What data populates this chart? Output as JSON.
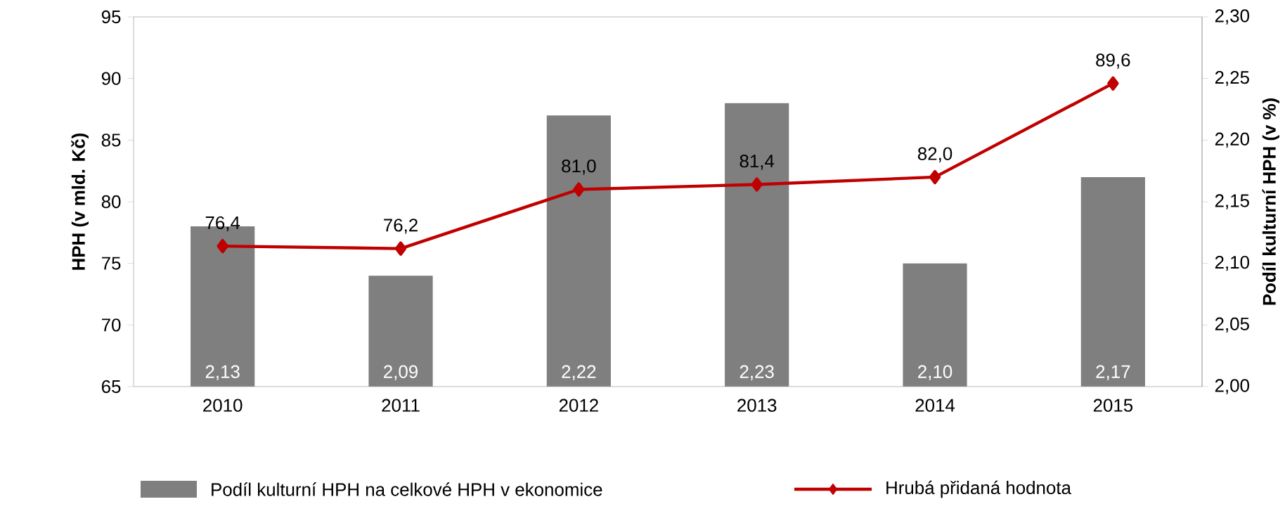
{
  "chart_data": {
    "type": "bar",
    "categories": [
      "2010",
      "2011",
      "2012",
      "2013",
      "2014",
      "2015"
    ],
    "ylabel": "HPH (v mld. Kč)",
    "y2label": "Podíl kulturní HPH (v %)",
    "ylim": [
      65,
      95
    ],
    "yticks": [
      65,
      70,
      75,
      80,
      85,
      90,
      95
    ],
    "y2lim": [
      2.0,
      2.3
    ],
    "y2ticks": [
      {
        "value": 2.0,
        "label": "2,00"
      },
      {
        "value": 2.05,
        "label": "2,05"
      },
      {
        "value": 2.1,
        "label": "2,10"
      },
      {
        "value": 2.15,
        "label": "2,15"
      },
      {
        "value": 2.2,
        "label": "2,20"
      },
      {
        "value": 2.25,
        "label": "2,25"
      },
      {
        "value": 2.3,
        "label": "2,30"
      }
    ],
    "series": [
      {
        "name": "Podíl kulturní HPH na celkové HPH v ekonomice",
        "axis": "y2",
        "color": "#7f7f7f",
        "values": [
          2.13,
          2.09,
          2.22,
          2.23,
          2.1,
          2.17
        ],
        "value_labels": [
          "2,13",
          "2,09",
          "2,22",
          "2,23",
          "2,10",
          "2,17"
        ]
      },
      {
        "name": "Hrubá přidaná hodnota",
        "type": "line",
        "axis": "y",
        "color": "#c00000",
        "values": [
          76.4,
          76.2,
          81.0,
          81.4,
          82.0,
          89.6
        ],
        "value_labels": [
          "76,4",
          "76,2",
          "81,0",
          "81,4",
          "82,0",
          "89,6"
        ]
      }
    ],
    "marker": "diamond",
    "legend": "bottom"
  }
}
